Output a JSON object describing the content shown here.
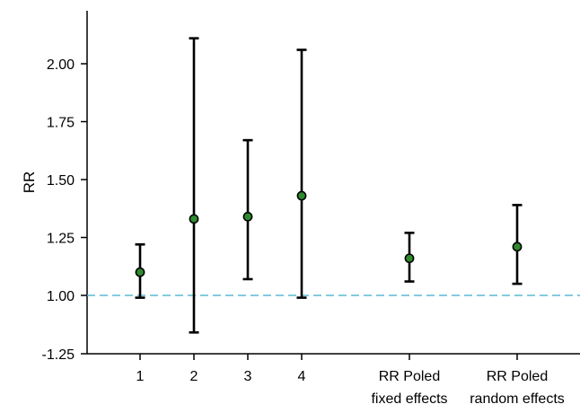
{
  "chart_data": {
    "type": "scatter",
    "xlabel": "",
    "ylabel": "RR",
    "y_tick_labels": [
      "-1.25",
      "1.00",
      "1.25",
      "1.50",
      "1.75",
      "2.00"
    ],
    "categories": [
      {
        "lines": [
          "1"
        ]
      },
      {
        "lines": [
          "2"
        ]
      },
      {
        "lines": [
          "3"
        ]
      },
      {
        "lines": [
          "4"
        ]
      },
      {
        "lines": [
          "RR Poled",
          "fixed effects"
        ]
      },
      {
        "lines": [
          "RR Poled",
          "random effects"
        ]
      }
    ],
    "points": [
      {
        "estimate": 1.1,
        "lower": 0.99,
        "upper": 1.22
      },
      {
        "estimate": 1.33,
        "lower": 0.84,
        "upper": 2.11
      },
      {
        "estimate": 1.34,
        "lower": 1.07,
        "upper": 1.67
      },
      {
        "estimate": 1.43,
        "lower": 0.99,
        "upper": 2.06
      },
      {
        "estimate": 1.16,
        "lower": 1.06,
        "upper": 1.27
      },
      {
        "estimate": 1.21,
        "lower": 1.05,
        "upper": 1.39
      }
    ],
    "reference_line": {
      "value": 1.0,
      "style": "dashed",
      "color": "#5bb8d3"
    },
    "colors": {
      "point": "#2e8b2e",
      "point_outline": "#000000",
      "whisker": "#000000",
      "axis": "#000000"
    },
    "grid": false,
    "legend": "none"
  }
}
